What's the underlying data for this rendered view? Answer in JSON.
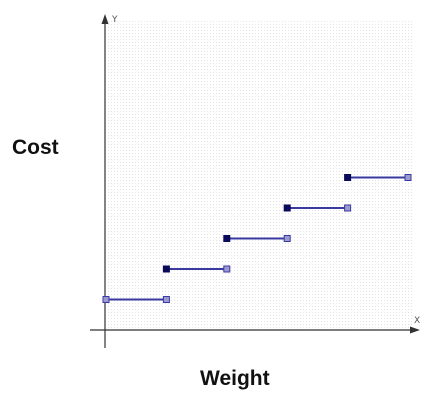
{
  "chart_data": {
    "type": "line",
    "title": "",
    "xlabel": "Weight",
    "ylabel": "Cost",
    "x_axis_letter": "X",
    "y_axis_letter": "Y",
    "xlim": [
      0,
      5
    ],
    "ylim": [
      0,
      5.5
    ],
    "grid": true,
    "legend": "none",
    "style": "step function with closed left endpoints and open right endpoints",
    "series": [
      {
        "color": "#2b2b8f",
        "segments": [
          {
            "x_start": 0,
            "x_end": 1,
            "y": 1,
            "left_closed": false,
            "right_closed": false
          },
          {
            "x_start": 1,
            "x_end": 2,
            "y": 2,
            "left_closed": true,
            "right_closed": false
          },
          {
            "x_start": 2,
            "x_end": 3,
            "y": 3,
            "left_closed": true,
            "right_closed": false
          },
          {
            "x_start": 3,
            "x_end": 4,
            "y": 4,
            "left_closed": true,
            "right_closed": false
          },
          {
            "x_start": 4,
            "x_end": 5,
            "y": 5,
            "left_closed": true,
            "right_closed": false
          }
        ]
      }
    ],
    "colors": {
      "line": "#3a3aa0",
      "closed_marker": "#0a0a5a",
      "open_marker_fill": "#9a9ad0",
      "axis": "#333333",
      "grid_dot": "#e2e2e2"
    }
  }
}
